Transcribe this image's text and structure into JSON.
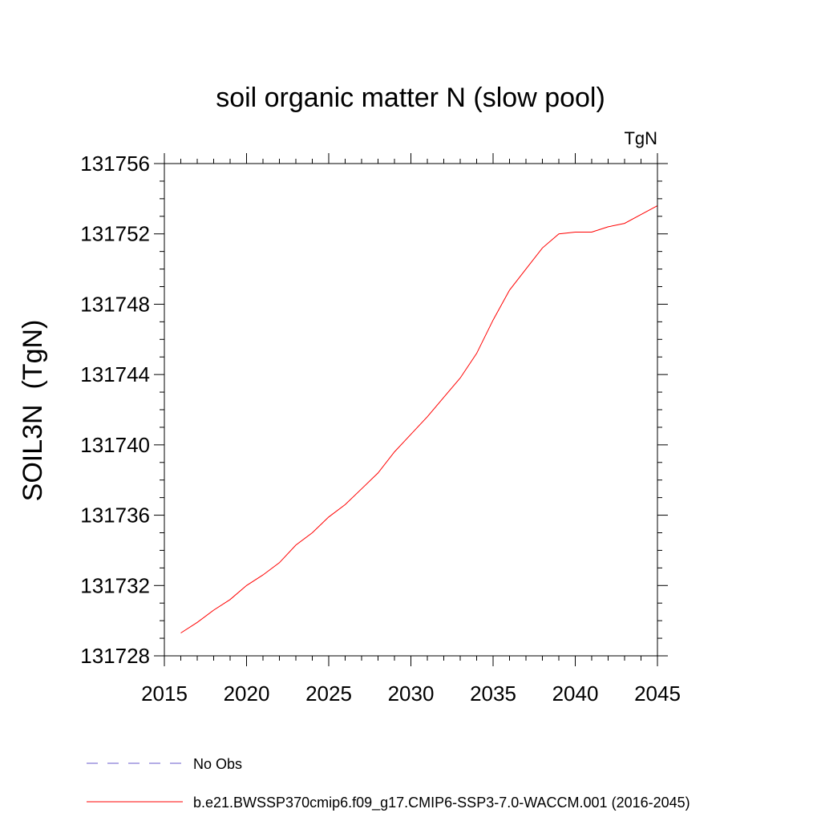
{
  "chart_data": {
    "type": "line",
    "title": "soil organic matter N (slow pool)",
    "units_label": "TgN",
    "ylabel": "SOIL3N  (TgN)",
    "xlabel": "",
    "xlim": [
      2015,
      2045
    ],
    "ylim": [
      131728,
      131756
    ],
    "x_ticks": [
      2015,
      2020,
      2025,
      2030,
      2035,
      2040,
      2045
    ],
    "y_ticks": [
      131728,
      131732,
      131736,
      131740,
      131744,
      131748,
      131752,
      131756
    ],
    "grid": false,
    "legend_position": "bottom",
    "series": [
      {
        "name": "No Obs",
        "color": "#6a5acd",
        "dash": "dashed",
        "x": [],
        "y": []
      },
      {
        "name": "b.e21.BWSSP370cmip6.f09_g17.CMIP6-SSP3-7.0-WACCM.001 (2016-2045)",
        "color": "#ff0000",
        "dash": "solid",
        "x": [
          2016,
          2017,
          2018,
          2019,
          2020,
          2021,
          2022,
          2023,
          2024,
          2025,
          2026,
          2027,
          2028,
          2029,
          2030,
          2031,
          2032,
          2033,
          2034,
          2035,
          2036,
          2037,
          2038,
          2039,
          2040,
          2041,
          2042,
          2043,
          2044,
          2045
        ],
        "y": [
          131729.3,
          131729.9,
          131730.6,
          131731.2,
          131732.0,
          131732.6,
          131733.3,
          131734.3,
          131735.0,
          131735.9,
          131736.6,
          131737.5,
          131738.4,
          131739.6,
          131740.6,
          131741.6,
          131742.7,
          131743.8,
          131745.2,
          131747.1,
          131748.8,
          131750.0,
          131751.2,
          131752.0,
          131752.1,
          131752.1,
          131752.4,
          131752.6,
          131753.1,
          131753.6
        ]
      }
    ]
  }
}
